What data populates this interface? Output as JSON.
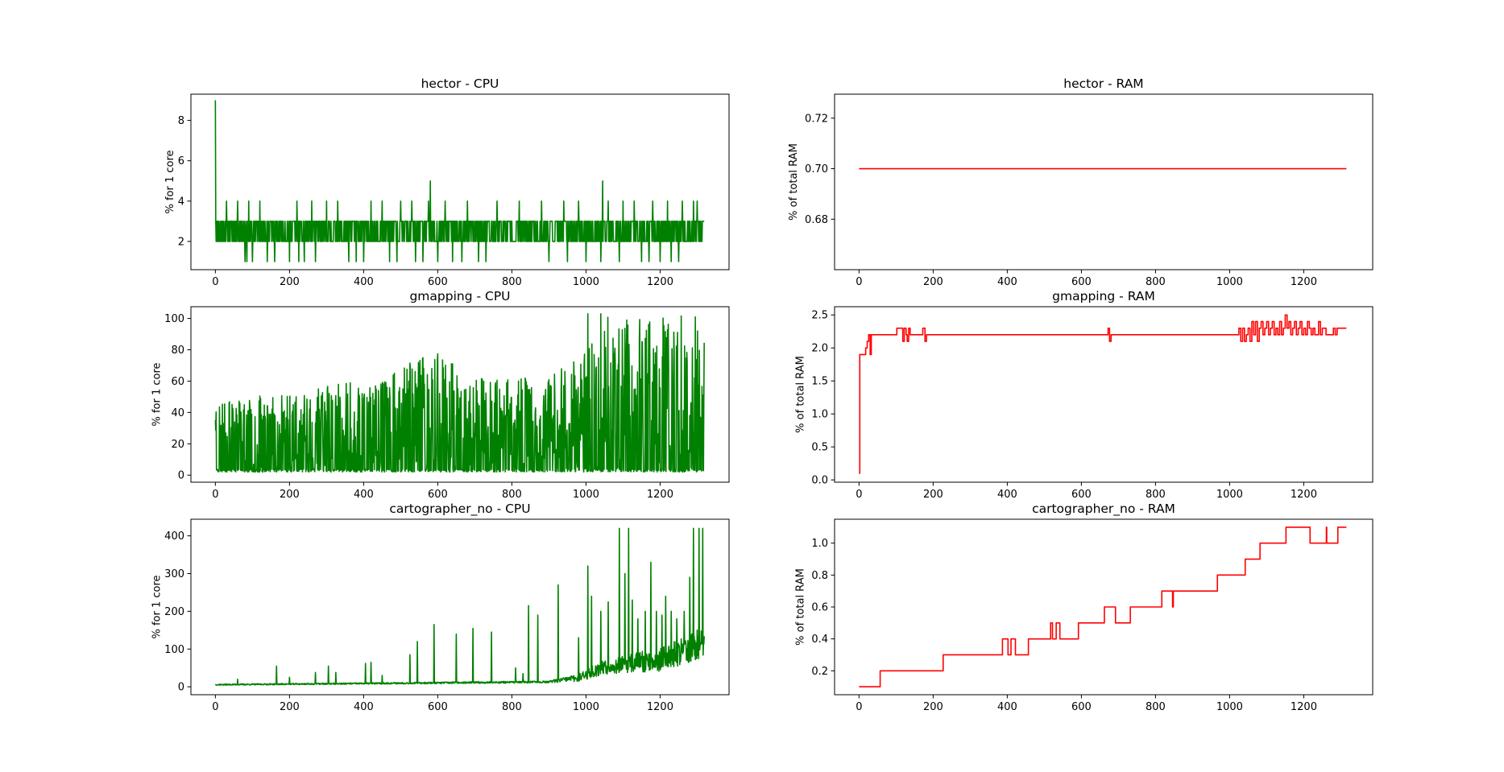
{
  "colors": {
    "cpu": "#008000",
    "ram": "#ff0000",
    "axes": "#000000",
    "background": "#ffffff"
  },
  "chart_data": [
    {
      "id": "hector-cpu",
      "type": "line",
      "title": "hector - CPU",
      "xlabel": "",
      "ylabel": "% for 1 core",
      "xlim": [
        -66,
        1386
      ],
      "ylim": [
        0.6,
        9.3
      ],
      "xticks": [
        0,
        200,
        400,
        600,
        800,
        1000,
        1200
      ],
      "yticks": [
        2,
        4,
        6,
        8
      ],
      "ytick_labels": [
        "2",
        "4",
        "6",
        "8"
      ],
      "grid": false,
      "color_key": "cpu",
      "pattern": {
        "kind": "cpu_noisy",
        "seed": 11,
        "n": 1320,
        "base": 2.5,
        "noise": 0.5,
        "trend": 0,
        "step": 1,
        "levels": [
          2,
          3
        ],
        "spikes": [
          [
            0,
            9
          ],
          [
            1,
            3
          ],
          [
            80,
            1
          ],
          [
            85,
            1
          ],
          [
            100,
            1
          ],
          [
            140,
            1
          ],
          [
            160,
            1
          ],
          [
            200,
            1
          ],
          [
            225,
            1
          ],
          [
            240,
            1
          ],
          [
            270,
            1
          ],
          [
            360,
            1
          ],
          [
            380,
            1
          ],
          [
            400,
            1
          ],
          [
            470,
            1
          ],
          [
            490,
            1
          ],
          [
            540,
            1
          ],
          [
            560,
            1
          ],
          [
            600,
            1
          ],
          [
            640,
            1
          ],
          [
            665,
            1
          ],
          [
            710,
            1
          ],
          [
            730,
            1
          ],
          [
            900,
            1
          ],
          [
            950,
            1
          ],
          [
            1000,
            1
          ],
          [
            1040,
            1
          ],
          [
            1090,
            1
          ],
          [
            1150,
            1
          ],
          [
            1170,
            1
          ],
          [
            1200,
            1
          ],
          [
            1230,
            1
          ],
          [
            1250,
            1
          ],
          [
            30,
            4
          ],
          [
            60,
            4
          ],
          [
            90,
            4
          ],
          [
            120,
            4
          ],
          [
            220,
            4
          ],
          [
            260,
            4
          ],
          [
            300,
            4
          ],
          [
            330,
            4
          ],
          [
            420,
            4
          ],
          [
            450,
            4
          ],
          [
            500,
            4
          ],
          [
            530,
            4
          ],
          [
            575,
            4
          ],
          [
            580,
            5
          ],
          [
            620,
            4
          ],
          [
            680,
            4
          ],
          [
            760,
            4
          ],
          [
            820,
            4
          ],
          [
            880,
            4
          ],
          [
            940,
            4
          ],
          [
            980,
            4
          ],
          [
            1045,
            5
          ],
          [
            1060,
            4
          ],
          [
            1100,
            4
          ],
          [
            1130,
            4
          ],
          [
            1180,
            4
          ],
          [
            1220,
            4
          ],
          [
            1260,
            4
          ],
          [
            1290,
            4
          ],
          [
            1300,
            4
          ]
        ]
      }
    },
    {
      "id": "hector-ram",
      "type": "line",
      "title": "hector - RAM",
      "xlabel": "",
      "ylabel": "% of total RAM",
      "xlim": [
        -66,
        1386
      ],
      "ylim": [
        0.66,
        0.7295
      ],
      "xticks": [
        0,
        200,
        400,
        600,
        800,
        1000,
        1200
      ],
      "yticks": [
        0.68,
        0.7,
        0.72
      ],
      "ytick_labels": [
        "0.68",
        "0.70",
        "0.72"
      ],
      "grid": false,
      "color_key": "ram",
      "pattern": {
        "kind": "flat",
        "n": 1320,
        "value": 0.7
      }
    },
    {
      "id": "gmapping-cpu",
      "type": "line",
      "title": "gmapping - CPU",
      "xlabel": "",
      "ylabel": "% for 1 core",
      "xlim": [
        -66,
        1386
      ],
      "ylim": [
        -4.5,
        107.5
      ],
      "xticks": [
        0,
        200,
        400,
        600,
        800,
        1000,
        1200
      ],
      "yticks": [
        0,
        20,
        40,
        60,
        80,
        100
      ],
      "ytick_labels": [
        "0",
        "20",
        "40",
        "60",
        "80",
        "100"
      ],
      "grid": false,
      "color_key": "cpu",
      "pattern": {
        "kind": "cpu_bursty",
        "seed": 23,
        "n": 1320,
        "step": 1,
        "envelope": [
          [
            0,
            45
          ],
          [
            150,
            50
          ],
          [
            300,
            55
          ],
          [
            450,
            60
          ],
          [
            580,
            80
          ],
          [
            700,
            60
          ],
          [
            900,
            60
          ],
          [
            1000,
            80
          ],
          [
            1050,
            100
          ],
          [
            1320,
            100
          ]
        ],
        "floor": 2,
        "spikes": [
          [
            0,
            35
          ],
          [
            1005,
            103
          ],
          [
            1040,
            103
          ],
          [
            1110,
            99
          ],
          [
            1295,
            101
          ]
        ]
      }
    },
    {
      "id": "gmapping-ram",
      "type": "line",
      "title": "gmapping - RAM",
      "xlabel": "",
      "ylabel": "% of total RAM",
      "xlim": [
        -66,
        1386
      ],
      "ylim": [
        -0.035,
        2.625
      ],
      "xticks": [
        0,
        200,
        400,
        600,
        800,
        1000,
        1200
      ],
      "yticks": [
        0.0,
        0.5,
        1.0,
        1.5,
        2.0,
        2.5
      ],
      "ytick_labels": [
        "0.0",
        "0.5",
        "1.0",
        "1.5",
        "2.0",
        "2.5"
      ],
      "grid": false,
      "color_key": "ram",
      "pattern": {
        "kind": "steps",
        "n": 1320,
        "points": [
          [
            0,
            0.1
          ],
          [
            2,
            1.9
          ],
          [
            15,
            1.9
          ],
          [
            18,
            2.0
          ],
          [
            22,
            2.1
          ],
          [
            26,
            2.2
          ],
          [
            30,
            1.9
          ],
          [
            33,
            2.2
          ],
          [
            100,
            2.2
          ],
          [
            102,
            2.3
          ],
          [
            115,
            2.3
          ],
          [
            118,
            2.1
          ],
          [
            122,
            2.3
          ],
          [
            127,
            2.2
          ],
          [
            130,
            2.1
          ],
          [
            134,
            2.3
          ],
          [
            138,
            2.2
          ],
          [
            170,
            2.2
          ],
          [
            172,
            2.3
          ],
          [
            178,
            2.1
          ],
          [
            182,
            2.2
          ],
          [
            670,
            2.2
          ],
          [
            672,
            2.3
          ],
          [
            676,
            2.1
          ],
          [
            680,
            2.2
          ],
          [
            1020,
            2.2
          ],
          [
            1025,
            2.3
          ],
          [
            1030,
            2.1
          ],
          [
            1035,
            2.3
          ],
          [
            1040,
            2.1
          ],
          [
            1045,
            2.2
          ],
          [
            1050,
            2.3
          ],
          [
            1055,
            2.1
          ],
          [
            1060,
            2.4
          ],
          [
            1065,
            2.2
          ],
          [
            1070,
            2.4
          ],
          [
            1075,
            2.1
          ],
          [
            1080,
            2.3
          ],
          [
            1085,
            2.4
          ],
          [
            1090,
            2.2
          ],
          [
            1095,
            2.3
          ],
          [
            1100,
            2.4
          ],
          [
            1105,
            2.2
          ],
          [
            1110,
            2.3
          ],
          [
            1115,
            2.4
          ],
          [
            1120,
            2.2
          ],
          [
            1125,
            2.3
          ],
          [
            1130,
            2.2
          ],
          [
            1135,
            2.4
          ],
          [
            1140,
            2.2
          ],
          [
            1145,
            2.3
          ],
          [
            1150,
            2.5
          ],
          [
            1155,
            2.3
          ],
          [
            1160,
            2.4
          ],
          [
            1165,
            2.2
          ],
          [
            1170,
            2.3
          ],
          [
            1175,
            2.4
          ],
          [
            1180,
            2.2
          ],
          [
            1185,
            2.3
          ],
          [
            1190,
            2.4
          ],
          [
            1195,
            2.2
          ],
          [
            1200,
            2.3
          ],
          [
            1205,
            2.2
          ],
          [
            1210,
            2.4
          ],
          [
            1215,
            2.3
          ],
          [
            1220,
            2.2
          ],
          [
            1225,
            2.3
          ],
          [
            1230,
            2.2
          ],
          [
            1240,
            2.4
          ],
          [
            1245,
            2.2
          ],
          [
            1250,
            2.3
          ],
          [
            1260,
            2.2
          ],
          [
            1280,
            2.3
          ],
          [
            1285,
            2.2
          ],
          [
            1290,
            2.3
          ],
          [
            1315,
            2.3
          ]
        ]
      }
    },
    {
      "id": "cartographer-cpu",
      "type": "line",
      "title": "cartographer_no - CPU",
      "xlabel": "",
      "ylabel": "% for 1 core",
      "xlim": [
        -66,
        1386
      ],
      "ylim": [
        -21,
        444
      ],
      "xticks": [
        0,
        200,
        400,
        600,
        800,
        1000,
        1200
      ],
      "yticks": [
        0,
        100,
        200,
        300,
        400
      ],
      "ytick_labels": [
        "0",
        "100",
        "200",
        "300",
        "400"
      ],
      "grid": false,
      "color_key": "cpu",
      "pattern": {
        "kind": "cpu_base_spikes",
        "seed": 37,
        "n": 1320,
        "step": 1,
        "base": [
          [
            0,
            5
          ],
          [
            400,
            8
          ],
          [
            900,
            12
          ],
          [
            980,
            20
          ],
          [
            1050,
            45
          ],
          [
            1200,
            60
          ],
          [
            1320,
            100
          ]
        ],
        "noise": [
          [
            0,
            3
          ],
          [
            900,
            5
          ],
          [
            980,
            20
          ],
          [
            1050,
            40
          ],
          [
            1320,
            80
          ]
        ],
        "spikes": [
          [
            60,
            20
          ],
          [
            165,
            55
          ],
          [
            200,
            25
          ],
          [
            270,
            38
          ],
          [
            305,
            55
          ],
          [
            325,
            38
          ],
          [
            405,
            62
          ],
          [
            420,
            65
          ],
          [
            450,
            30
          ],
          [
            525,
            85
          ],
          [
            545,
            120
          ],
          [
            590,
            165
          ],
          [
            650,
            140
          ],
          [
            695,
            155
          ],
          [
            745,
            145
          ],
          [
            810,
            50
          ],
          [
            830,
            35
          ],
          [
            845,
            215
          ],
          [
            870,
            190
          ],
          [
            925,
            270
          ],
          [
            980,
            130
          ],
          [
            1005,
            320
          ],
          [
            1015,
            240
          ],
          [
            1040,
            200
          ],
          [
            1060,
            225
          ],
          [
            1090,
            420
          ],
          [
            1105,
            300
          ],
          [
            1115,
            420
          ],
          [
            1125,
            230
          ],
          [
            1140,
            180
          ],
          [
            1160,
            200
          ],
          [
            1175,
            330
          ],
          [
            1190,
            200
          ],
          [
            1205,
            190
          ],
          [
            1215,
            240
          ],
          [
            1230,
            200
          ],
          [
            1245,
            180
          ],
          [
            1265,
            200
          ],
          [
            1280,
            290
          ],
          [
            1290,
            420
          ],
          [
            1300,
            150
          ],
          [
            1305,
            420
          ],
          [
            1315,
            420
          ]
        ]
      }
    },
    {
      "id": "cartographer-ram",
      "type": "line",
      "title": "cartographer_no - RAM",
      "xlabel": "",
      "ylabel": "% of total RAM",
      "xlim": [
        -66,
        1386
      ],
      "ylim": [
        0.05,
        1.15
      ],
      "xticks": [
        0,
        200,
        400,
        600,
        800,
        1000,
        1200
      ],
      "yticks": [
        0.2,
        0.4,
        0.6,
        0.8,
        1.0
      ],
      "ytick_labels": [
        "0.2",
        "0.4",
        "0.6",
        "0.8",
        "1.0"
      ],
      "grid": false,
      "color_key": "ram",
      "pattern": {
        "kind": "steps",
        "n": 1320,
        "points": [
          [
            0,
            0.1
          ],
          [
            55,
            0.1
          ],
          [
            57,
            0.2
          ],
          [
            225,
            0.2
          ],
          [
            227,
            0.3
          ],
          [
            385,
            0.3
          ],
          [
            387,
            0.4
          ],
          [
            400,
            0.4
          ],
          [
            402,
            0.3
          ],
          [
            408,
            0.3
          ],
          [
            410,
            0.4
          ],
          [
            420,
            0.4
          ],
          [
            422,
            0.3
          ],
          [
            455,
            0.3
          ],
          [
            457,
            0.4
          ],
          [
            515,
            0.4
          ],
          [
            517,
            0.5
          ],
          [
            520,
            0.5
          ],
          [
            522,
            0.4
          ],
          [
            530,
            0.4
          ],
          [
            532,
            0.5
          ],
          [
            540,
            0.5
          ],
          [
            542,
            0.4
          ],
          [
            590,
            0.4
          ],
          [
            592,
            0.5
          ],
          [
            660,
            0.5
          ],
          [
            662,
            0.6
          ],
          [
            690,
            0.6
          ],
          [
            692,
            0.5
          ],
          [
            730,
            0.5
          ],
          [
            732,
            0.6
          ],
          [
            815,
            0.6
          ],
          [
            817,
            0.7
          ],
          [
            845,
            0.7
          ],
          [
            846,
            0.6
          ],
          [
            848,
            0.7
          ],
          [
            965,
            0.7
          ],
          [
            967,
            0.8
          ],
          [
            1040,
            0.8
          ],
          [
            1042,
            0.9
          ],
          [
            1080,
            0.9
          ],
          [
            1082,
            1.0
          ],
          [
            1150,
            1.0
          ],
          [
            1152,
            1.1
          ],
          [
            1215,
            1.1
          ],
          [
            1217,
            1.0
          ],
          [
            1260,
            1.0
          ],
          [
            1261,
            1.1
          ],
          [
            1262,
            1.0
          ],
          [
            1290,
            1.0
          ],
          [
            1292,
            1.1
          ],
          [
            1315,
            1.1
          ]
        ]
      }
    }
  ]
}
